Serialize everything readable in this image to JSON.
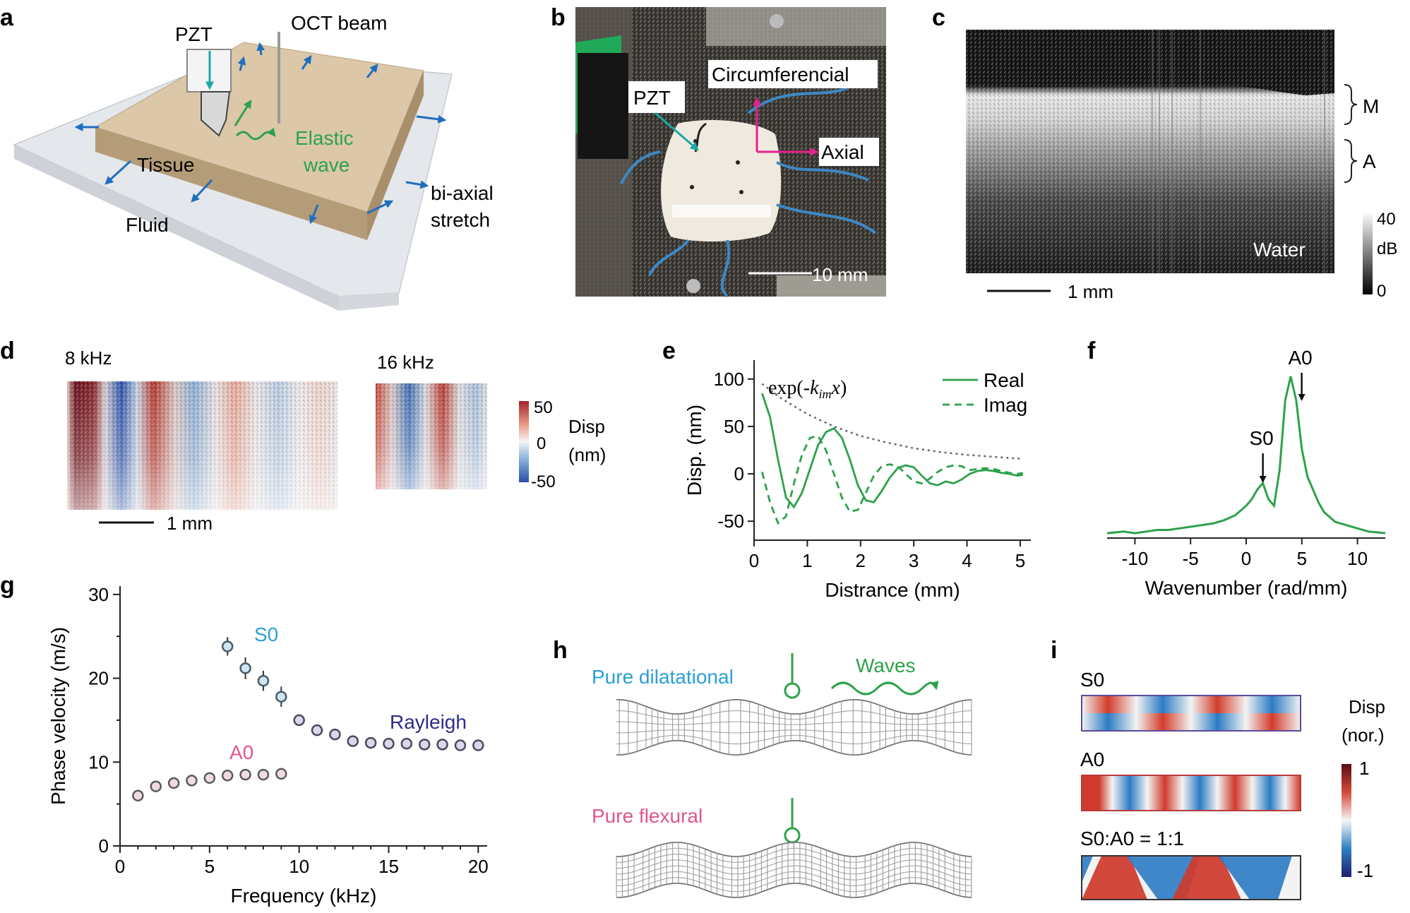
{
  "panels": {
    "a": {
      "letter": "a",
      "pzt": "PZT",
      "oct_beam": "OCT beam",
      "elastic": "Elastic",
      "wave": "wave",
      "tissue": "Tissue",
      "fluid": "Fluid",
      "biaxial": "bi-axial",
      "stretch": "stretch"
    },
    "b": {
      "letter": "b",
      "pzt": "PZT",
      "circumferencial": "Circumferencial",
      "axial": "Axial",
      "scale": "10 mm"
    },
    "c": {
      "letter": "c",
      "layer_m": "M",
      "layer_a": "A",
      "water": "Water",
      "cb_max": "40",
      "cb_unit": "dB",
      "cb_min": "0",
      "scale": "1 mm"
    },
    "d": {
      "letter": "d",
      "f1": "8 kHz",
      "f2": "16 kHz",
      "cb_max": "50",
      "cb_mid": "0",
      "cb_min": "-50",
      "cb_label1": "Disp",
      "cb_label2": "(nm)",
      "scale": "1 mm"
    },
    "e": {
      "letter": "e"
    },
    "f": {
      "letter": "f"
    },
    "g": {
      "letter": "g"
    },
    "h": {
      "letter": "h",
      "dilatational": "Pure dilatational",
      "flexural": "Pure flexural",
      "waves": "Waves"
    },
    "i": {
      "letter": "i",
      "s0": "S0",
      "a0": "A0",
      "mix": "S0:A0 = 1:1",
      "cb_label1": "Disp",
      "cb_label2": "(nor.)",
      "cb_max": "1",
      "cb_min": "-1"
    }
  },
  "chart_data": [
    {
      "id": "e",
      "type": "line",
      "xlabel": "Distrance (mm)",
      "ylabel": "Disp. (nm)",
      "xlim": [
        0,
        5.2
      ],
      "ylim": [
        -70,
        120
      ],
      "xticks": [
        "0",
        "1",
        "2",
        "3",
        "4",
        "5"
      ],
      "yticks": [
        "-50",
        "0",
        "50",
        "100"
      ],
      "annotation": "exp(-k_im x)",
      "legend": [
        "Real",
        "Imag"
      ],
      "series": [
        {
          "name": "Real",
          "x": [
            0.15,
            0.3,
            0.45,
            0.6,
            0.75,
            0.9,
            1.05,
            1.2,
            1.35,
            1.5,
            1.65,
            1.8,
            1.95,
            2.1,
            2.25,
            2.4,
            2.55,
            2.7,
            2.85,
            3.0,
            3.15,
            3.3,
            3.45,
            3.6,
            3.75,
            3.9,
            4.05,
            4.2,
            4.35,
            4.5,
            4.65,
            4.8,
            4.95,
            5.05
          ],
          "y": [
            85,
            60,
            15,
            -25,
            -35,
            -20,
            5,
            30,
            44,
            48,
            38,
            15,
            -12,
            -28,
            -30,
            -18,
            -4,
            6,
            9,
            7,
            -2,
            -10,
            -12,
            -8,
            -10,
            -6,
            0,
            3,
            4,
            3,
            1,
            0,
            -2,
            -1
          ]
        },
        {
          "name": "Imag",
          "x": [
            0.15,
            0.3,
            0.45,
            0.6,
            0.75,
            0.9,
            1.05,
            1.2,
            1.35,
            1.5,
            1.65,
            1.8,
            1.95,
            2.1,
            2.25,
            2.4,
            2.55,
            2.7,
            2.85,
            3.0,
            3.15,
            3.3,
            3.45,
            3.6,
            3.75,
            3.9,
            4.05,
            4.2,
            4.35,
            4.5,
            4.65,
            4.8,
            4.95,
            5.05
          ],
          "y": [
            2,
            -30,
            -52,
            -45,
            -10,
            20,
            38,
            40,
            25,
            0,
            -25,
            -40,
            -38,
            -20,
            -2,
            8,
            10,
            8,
            0,
            -8,
            -10,
            -5,
            2,
            7,
            9,
            8,
            4,
            5,
            6,
            5,
            3,
            1,
            0,
            1
          ]
        },
        {
          "name": "Envelope",
          "x": [
            0.15,
            0.5,
            1.0,
            1.5,
            2.0,
            2.5,
            3.0,
            3.5,
            4.0,
            4.5,
            5.0
          ],
          "y": [
            95,
            80,
            63,
            50,
            40,
            33,
            27,
            23,
            20,
            18,
            16
          ]
        }
      ]
    },
    {
      "id": "f",
      "type": "line",
      "xlabel": "Wavenumber (rad/mm)",
      "xlim": [
        -12.5,
        12.5
      ],
      "ylim": [
        0,
        1.1
      ],
      "xticks": [
        "-10",
        "-5",
        "0",
        "5",
        "10"
      ],
      "annotations": [
        "S0",
        "A0"
      ],
      "series": [
        {
          "name": "Spectrum",
          "x": [
            -12.5,
            -11,
            -10,
            -9,
            -8,
            -7,
            -6,
            -5,
            -4,
            -3,
            -2,
            -1,
            -0.5,
            0,
            0.5,
            1,
            1.5,
            2,
            2.5,
            3,
            3.5,
            4,
            4.5,
            5,
            5.5,
            6,
            6.5,
            7,
            8,
            9,
            10,
            11,
            12.5
          ],
          "y": [
            0.03,
            0.04,
            0.03,
            0.04,
            0.05,
            0.05,
            0.06,
            0.07,
            0.08,
            0.09,
            0.11,
            0.14,
            0.17,
            0.2,
            0.24,
            0.3,
            0.34,
            0.24,
            0.2,
            0.42,
            0.85,
            1.0,
            0.85,
            0.55,
            0.38,
            0.3,
            0.22,
            0.16,
            0.1,
            0.08,
            0.06,
            0.04,
            0.03
          ]
        }
      ]
    },
    {
      "id": "g",
      "type": "scatter",
      "xlabel": "Frequency (kHz)",
      "ylabel": "Phase velocity (m/s)",
      "xlim": [
        0,
        20.5
      ],
      "ylim": [
        0,
        31
      ],
      "xticks": [
        "0",
        "5",
        "10",
        "15",
        "20"
      ],
      "yticks": [
        "0",
        "10",
        "20",
        "30"
      ],
      "labels": [
        "S0",
        "A0",
        "Rayleigh"
      ],
      "series": [
        {
          "name": "A0",
          "x": [
            1,
            2,
            3,
            4,
            5,
            6,
            7,
            8,
            9
          ],
          "y": [
            6.0,
            7.1,
            7.5,
            7.8,
            8.1,
            8.4,
            8.5,
            8.5,
            8.6
          ]
        },
        {
          "name": "S0",
          "x": [
            6,
            7,
            8,
            9
          ],
          "y": [
            23.8,
            21.2,
            19.7,
            17.8
          ],
          "err": [
            1.1,
            1.3,
            1.2,
            1.2
          ]
        },
        {
          "name": "Rayleigh",
          "x": [
            10,
            11,
            12,
            13,
            14,
            15,
            16,
            17,
            18,
            19,
            20
          ],
          "y": [
            15.0,
            13.8,
            13.3,
            12.5,
            12.3,
            12.2,
            12.2,
            12.1,
            12.1,
            12.0,
            12.0
          ]
        }
      ]
    }
  ],
  "colors": {
    "green": "#2ca24a",
    "teal": "#1aa8a6",
    "magenta": "#e8218c",
    "blue": "#1f6fbf",
    "s0": "#2a9fd6",
    "a0": "#e0558e",
    "rayleigh": "#2e2d86"
  }
}
